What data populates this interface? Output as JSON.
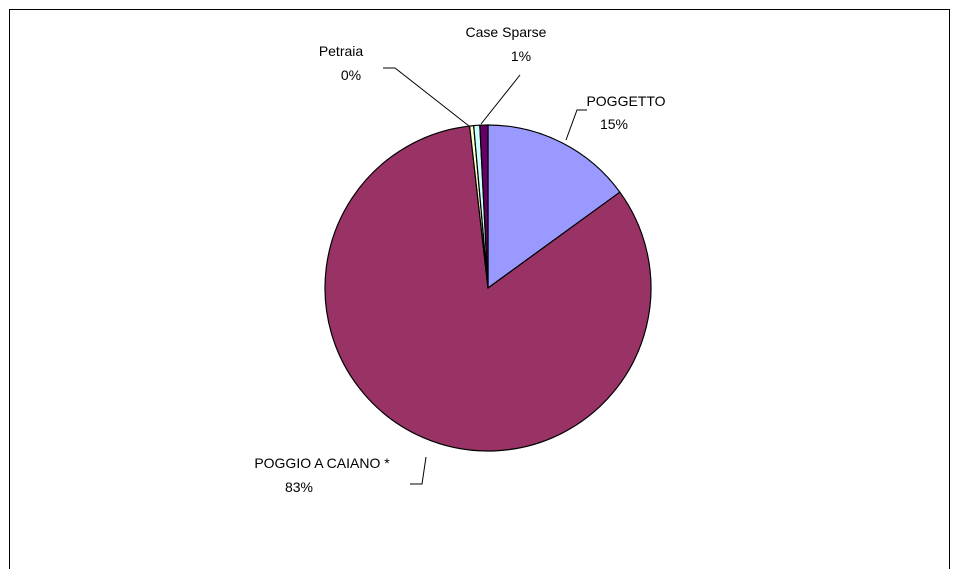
{
  "chart_data": {
    "type": "pie",
    "title": "",
    "slices": [
      {
        "label": "POGGETTO",
        "percent_label": "15%",
        "value": 15,
        "color": "#9999FF"
      },
      {
        "label": "POGGIO A CAIANO *",
        "percent_label": "83%",
        "value": 83.2,
        "color": "#993366"
      },
      {
        "label": "Petraia",
        "percent_label": "0%",
        "value": 0.4,
        "color": "#FFFFCC"
      },
      {
        "label": "Case Sparse",
        "percent_label": "1%",
        "value": 0.6,
        "color": "#CCFFFF"
      },
      {
        "label": "",
        "percent_label": "",
        "value": 0.8,
        "color": "#660066"
      }
    ],
    "start_angle_deg": 0,
    "direction": "clockwise",
    "legend": "none"
  }
}
